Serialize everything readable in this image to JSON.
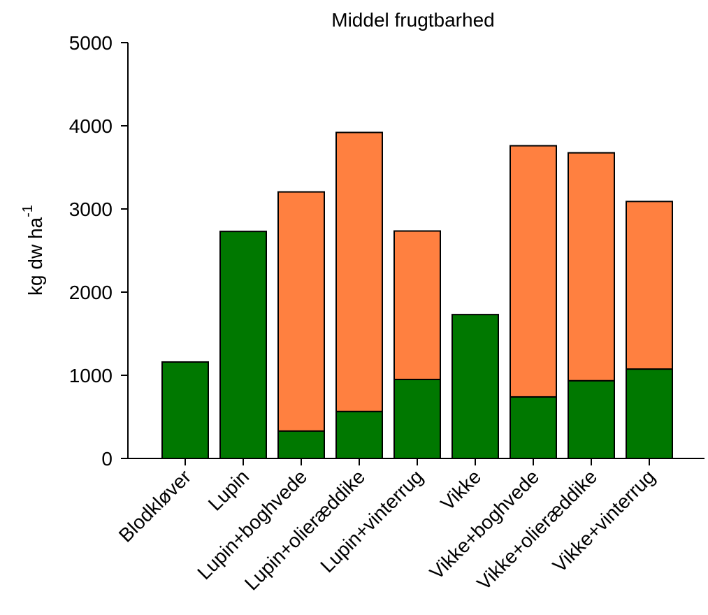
{
  "chart_data": {
    "type": "bar",
    "stacked": true,
    "title": "Middel frugtbarhed",
    "ylabel_main": "kg dw ha",
    "ylabel_sup": "-1",
    "xlabel": "",
    "ylim": [
      0,
      5000
    ],
    "yticks": [
      0,
      1000,
      2000,
      3000,
      4000,
      5000
    ],
    "categories": [
      "Blodkløver",
      "Lupin",
      "Lupin+boghvede",
      "Lupin+olieræddike",
      "Lupin+vinterrug",
      "Vikke",
      "Vikke+boghvede",
      "Vikke+olieræddike",
      "Vikke+vinterrug"
    ],
    "series": [
      {
        "values": [
          1160,
          2730,
          330,
          565,
          950,
          1730,
          740,
          935,
          1075
        ],
        "color": "#007800"
      },
      {
        "values": [
          0,
          0,
          2875,
          3355,
          1785,
          0,
          3020,
          2740,
          2015
        ],
        "color": "#ff8040"
      }
    ],
    "grid": false,
    "legend": "none"
  }
}
